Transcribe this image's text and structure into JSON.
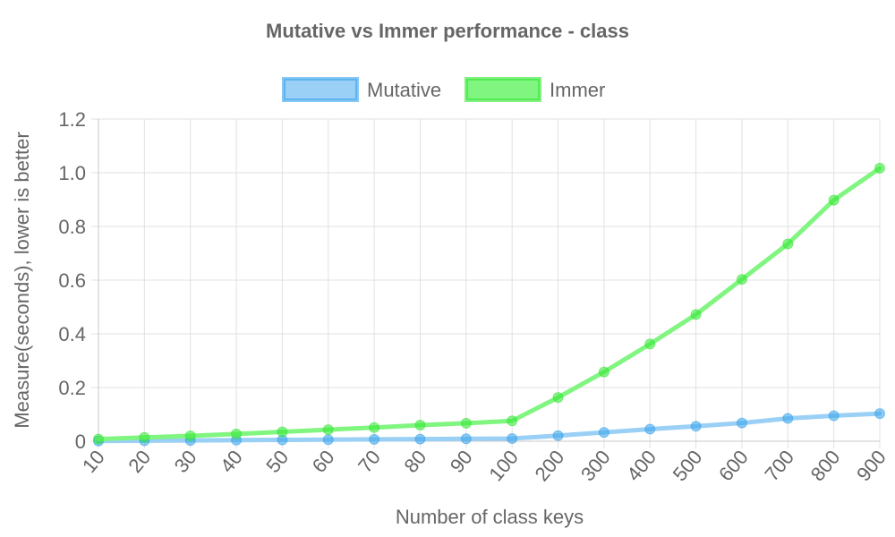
{
  "chart_data": {
    "type": "line",
    "title": "Mutative vs Immer performance - class",
    "xlabel": "Number of class  keys",
    "ylabel": "Measure(seconds), lower is better",
    "categories": [
      "10",
      "20",
      "30",
      "40",
      "50",
      "60",
      "70",
      "80",
      "90",
      "100",
      "200",
      "300",
      "400",
      "500",
      "600",
      "700",
      "800",
      "900"
    ],
    "ylim": [
      0,
      1.2
    ],
    "yticks": [
      "0",
      "0.2",
      "0.4",
      "0.6",
      "0.8",
      "1.0",
      "1.2"
    ],
    "ytick_values": [
      0,
      0.2,
      0.4,
      0.6,
      0.8,
      1.0,
      1.2
    ],
    "grid": true,
    "legend_position": "top-center",
    "series": [
      {
        "name": "Mutative",
        "color": "#36a2eb",
        "line_color": "#9ad0f5",
        "values": [
          0.001,
          0.002,
          0.003,
          0.004,
          0.005,
          0.006,
          0.007,
          0.008,
          0.009,
          0.01,
          0.021,
          0.033,
          0.045,
          0.056,
          0.068,
          0.085,
          0.095,
          0.103
        ]
      },
      {
        "name": "Immer",
        "color": "#32e632",
        "line_color": "#80f580",
        "values": [
          0.008,
          0.014,
          0.02,
          0.027,
          0.035,
          0.043,
          0.051,
          0.06,
          0.067,
          0.076,
          0.163,
          0.258,
          0.362,
          0.472,
          0.603,
          0.735,
          0.898,
          1.017
        ]
      }
    ]
  }
}
